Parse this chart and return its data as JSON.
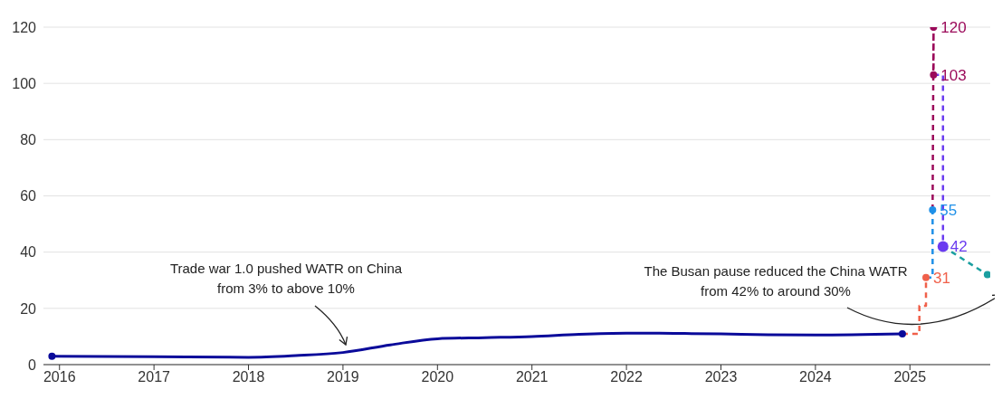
{
  "chart_data": {
    "type": "line",
    "xlim": [
      2015.83,
      2025.85
    ],
    "xticks": [
      2016,
      2017,
      2018,
      2019,
      2020,
      2021,
      2022,
      2023,
      2024,
      2025
    ],
    "ylim": [
      0,
      120
    ],
    "yticks": [
      0,
      20,
      40,
      60,
      80,
      100,
      120
    ],
    "grid": "y",
    "series": [
      {
        "color": "#0a0a9a",
        "line_style": "solid",
        "x": [
          2015.92,
          2017,
          2018,
          2018.5,
          2019,
          2019.5,
          2020,
          2020.5,
          2021,
          2021.5,
          2022,
          2022.5,
          2023,
          2023.5,
          2024,
          2024.92
        ],
        "values": [
          3,
          2.8,
          2.6,
          3.2,
          4.3,
          7,
          9.2,
          9.6,
          10,
          10.8,
          11.2,
          11.1,
          10.9,
          10.6,
          10.5,
          10.9
        ]
      },
      {
        "type": "step",
        "color": "#f0604a",
        "line_style": "dashed",
        "x": [
          2024.92,
          2025.1,
          2025.17
        ],
        "values": [
          10.9,
          20.9,
          31
        ],
        "value_labels": [
          null,
          null,
          "31"
        ]
      },
      {
        "type": "step",
        "color": "#1e90e8",
        "line_style": "dashed",
        "x": [
          2025.17,
          2025.24
        ],
        "values": [
          31,
          55
        ],
        "value_labels": [
          null,
          "55"
        ]
      },
      {
        "color": "#9b0a5a",
        "line_style": "dashed",
        "x": [
          2025.24,
          2025.25,
          2025.25
        ],
        "values": [
          55,
          120,
          103
        ],
        "value_labels": [
          null,
          "120",
          "103"
        ]
      },
      {
        "type": "step",
        "color": "#6a3cf0",
        "line_style": "dashed",
        "x": [
          2025.25,
          2025.35,
          2025.35
        ],
        "values": [
          103,
          103,
          42
        ],
        "value_labels": [
          null,
          null,
          "42"
        ]
      },
      {
        "color": "#1a9fa0",
        "line_style": "dashed",
        "x": [
          2025.35,
          2025.82
        ],
        "values": [
          42,
          32
        ]
      }
    ],
    "annotations": [
      "Trade war 1.0 pushed WATR on China\nfrom 3% to above 10%",
      "The Busan pause reduced the China WATR\nfrom 42% to around 30%"
    ]
  }
}
